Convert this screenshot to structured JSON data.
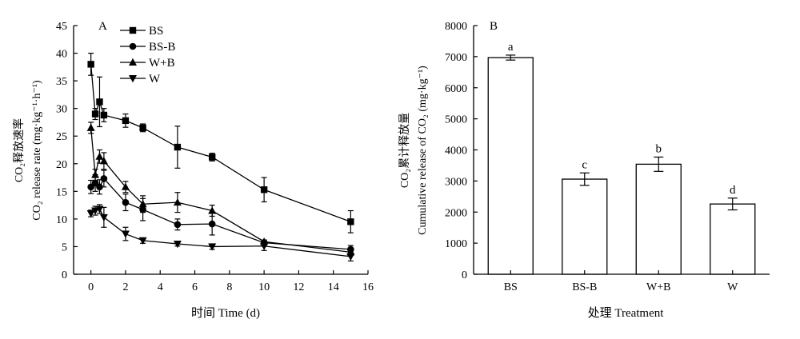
{
  "chart_data": [
    {
      "type": "line",
      "panel_label": "A",
      "xlabel": "时间 Time (d)",
      "ylabel_cn": "CO₂释放速率",
      "ylabel_en": "CO₂ release rate (mg·kg⁻¹·h⁻¹)",
      "xlim": [
        -1,
        16
      ],
      "ylim": [
        0,
        45
      ],
      "xticks": [
        0,
        2,
        4,
        6,
        8,
        10,
        12,
        14,
        16
      ],
      "yticks": [
        0,
        5,
        10,
        15,
        20,
        25,
        30,
        35,
        40,
        45
      ],
      "legend": "top-left",
      "series": [
        {
          "name": "BS",
          "marker": "square",
          "x": [
            0,
            0.25,
            0.5,
            0.75,
            2,
            3,
            5,
            7,
            10,
            15
          ],
          "y": [
            38.0,
            29.0,
            31.2,
            28.8,
            27.8,
            26.5,
            23.0,
            21.2,
            15.3,
            9.5
          ],
          "err": [
            2.0,
            1.0,
            4.5,
            1.2,
            1.2,
            0.7,
            3.8,
            0.7,
            2.2,
            2.0
          ]
        },
        {
          "name": "BS-B",
          "marker": "circle",
          "x": [
            0,
            0.25,
            0.5,
            0.75,
            2,
            3,
            5,
            7,
            10,
            15
          ],
          "y": [
            15.8,
            16.5,
            15.8,
            17.3,
            13.0,
            11.7,
            9.0,
            9.1,
            5.7,
            4.5
          ],
          "err": [
            1.2,
            1.5,
            1.3,
            1.5,
            1.5,
            2.0,
            1.0,
            2.0,
            0.5,
            0.7
          ]
        },
        {
          "name": "W+B",
          "marker": "triangle-up",
          "x": [
            0,
            0.25,
            0.5,
            0.75,
            2,
            3,
            5,
            7,
            10,
            15
          ],
          "y": [
            26.5,
            18.0,
            21.3,
            20.5,
            15.8,
            12.7,
            13.0,
            11.5,
            5.9,
            4.0
          ],
          "err": [
            1.0,
            1.0,
            1.2,
            1.5,
            1.0,
            1.5,
            1.8,
            1.0,
            0.3,
            0.6
          ]
        },
        {
          "name": "W",
          "marker": "triangle-down",
          "x": [
            0,
            0.25,
            0.5,
            0.75,
            2,
            3,
            5,
            7,
            10,
            15
          ],
          "y": [
            11.0,
            11.5,
            11.8,
            10.3,
            7.3,
            6.1,
            5.5,
            5.0,
            5.1,
            3.2
          ],
          "err": [
            0.6,
            0.8,
            0.8,
            1.8,
            1.2,
            0.5,
            0.4,
            0.5,
            0.8,
            0.8
          ]
        }
      ]
    },
    {
      "type": "bar",
      "panel_label": "B",
      "xlabel": "处理 Treatment",
      "ylabel_cn": "CO₂累计释放量",
      "ylabel_en": "Cumulative release of CO₂ (mg·kg⁻¹)",
      "ylim": [
        0,
        8000
      ],
      "yticks": [
        0,
        1000,
        2000,
        3000,
        4000,
        5000,
        6000,
        7000,
        8000
      ],
      "categories": [
        "BS",
        "BS-B",
        "W+B",
        "W"
      ],
      "values": [
        6970,
        3060,
        3540,
        2260
      ],
      "err": [
        80,
        200,
        230,
        190
      ],
      "letters": [
        "a",
        "c",
        "b",
        "d"
      ]
    }
  ]
}
